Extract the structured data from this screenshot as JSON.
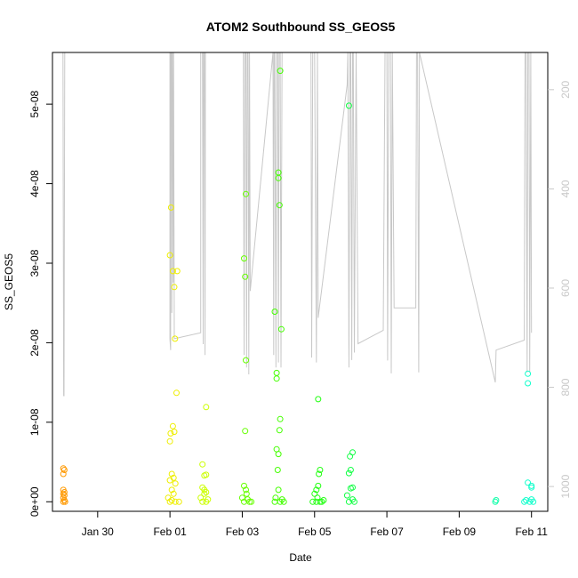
{
  "chart_data": {
    "type": "scatter",
    "title": "ATOM2 Southbound SS_GEOS5",
    "xlabel": "Date",
    "ylabel": "SS_GEOS5",
    "x_ticks": [
      "Jan 30",
      "Feb 01",
      "Feb 03",
      "Feb 05",
      "Feb 07",
      "Feb 09",
      "Feb 11"
    ],
    "x_tick_days": [
      1,
      3,
      5,
      7,
      9,
      11,
      13
    ],
    "xlim_days": [
      -0.25,
      13.45
    ],
    "y_ticks": [
      "0e+00",
      "1e-08",
      "2e-08",
      "3e-08",
      "4e-08",
      "5e-08"
    ],
    "y_tick_values": [
      0,
      1e-08,
      2e-08,
      3e-08,
      4e-08,
      5e-08
    ],
    "ylim": [
      -1.2e-09,
      5.65e-08
    ],
    "right_ticks": [
      "200",
      "400",
      "600",
      "800",
      "1000"
    ],
    "right_tick_values": [
      200,
      400,
      600,
      800,
      1000
    ],
    "right_lim": [
      1050,
      125
    ],
    "line_color": "#c8c8c8",
    "groups": [
      {
        "color": "#ff9900",
        "points": [
          [
            0.05,
            0
          ],
          [
            0.05,
            5e-10
          ],
          [
            0.05,
            1e-09
          ],
          [
            0.05,
            1.5e-09
          ],
          [
            0.05,
            3.5e-09
          ],
          [
            0.05,
            4.2e-09
          ],
          [
            0.08,
            4e-09
          ],
          [
            0.08,
            8e-10
          ],
          [
            0.08,
            1.2e-09
          ],
          [
            0.08,
            2e-10
          ],
          [
            0.1,
            0
          ]
        ]
      },
      {
        "color": "#eeee00",
        "points": [
          [
            3.0,
            3.1e-08
          ],
          [
            3.03,
            3.7e-08
          ],
          [
            3.08,
            2.9e-08
          ],
          [
            3.12,
            2.7e-08
          ],
          [
            3.14,
            2.05e-08
          ],
          [
            3.2,
            2.9e-08
          ],
          [
            3.18,
            1.37e-08
          ],
          [
            3.02,
            8.6e-09
          ],
          [
            3.0,
            7.6e-09
          ],
          [
            3.08,
            9.5e-09
          ],
          [
            3.12,
            8.8e-09
          ],
          [
            3.05,
            3.5e-09
          ],
          [
            3.1,
            3e-09
          ],
          [
            3.0,
            2.7e-09
          ],
          [
            3.15,
            2.3e-09
          ],
          [
            3.05,
            1.5e-09
          ],
          [
            3.1,
            1e-09
          ],
          [
            2.95,
            5e-10
          ],
          [
            3.05,
            2e-10
          ],
          [
            3.15,
            0
          ],
          [
            3.25,
            0
          ],
          [
            3.0,
            0
          ]
        ]
      },
      {
        "color": "#ccff00",
        "points": [
          [
            4.0,
            1.19e-08
          ],
          [
            3.9,
            4.7e-09
          ],
          [
            3.95,
            3.3e-09
          ],
          [
            4.0,
            3.4e-09
          ],
          [
            3.9,
            1.8e-09
          ],
          [
            3.95,
            1e-09
          ],
          [
            4.0,
            1.2e-09
          ],
          [
            3.85,
            5e-10
          ],
          [
            3.9,
            0
          ],
          [
            4.0,
            0
          ],
          [
            4.05,
            3e-10
          ],
          [
            3.95,
            1.5e-09
          ]
        ]
      },
      {
        "color": "#66ff00",
        "points": [
          [
            5.05,
            3.06e-08
          ],
          [
            5.1,
            3.87e-08
          ],
          [
            5.08,
            2.83e-08
          ],
          [
            5.1,
            1.78e-08
          ],
          [
            5.08,
            8.9e-09
          ],
          [
            5.05,
            2e-09
          ],
          [
            5.1,
            1.5e-09
          ],
          [
            5.0,
            5e-10
          ],
          [
            5.05,
            0
          ],
          [
            5.12,
            1e-09
          ],
          [
            5.15,
            3e-10
          ],
          [
            5.2,
            0
          ],
          [
            5.25,
            0
          ]
        ]
      },
      {
        "color": "#44ff00",
        "points": [
          [
            5.9,
            2.39e-08
          ],
          [
            5.95,
            1.62e-08
          ],
          [
            5.95,
            1.55e-08
          ],
          [
            6.0,
            4.14e-08
          ],
          [
            6.0,
            4.07e-08
          ],
          [
            6.03,
            3.73e-08
          ],
          [
            6.05,
            5.42e-08
          ],
          [
            6.08,
            2.17e-08
          ],
          [
            6.05,
            1.04e-08
          ],
          [
            6.03,
            9e-09
          ],
          [
            5.95,
            6.6e-09
          ],
          [
            6.0,
            6e-09
          ],
          [
            5.98,
            4e-09
          ],
          [
            6.0,
            1.5e-09
          ],
          [
            5.92,
            5e-10
          ],
          [
            6.05,
            0
          ],
          [
            6.1,
            3e-10
          ],
          [
            6.15,
            0
          ],
          [
            5.9,
            0
          ]
        ]
      },
      {
        "color": "#22ff11",
        "points": [
          [
            7.1,
            1.29e-08
          ],
          [
            7.12,
            3.5e-09
          ],
          [
            7.15,
            4e-09
          ],
          [
            7.1,
            2e-09
          ],
          [
            7.05,
            1.5e-09
          ],
          [
            7.0,
            1e-09
          ],
          [
            7.08,
            5e-10
          ],
          [
            7.15,
            0
          ],
          [
            7.2,
            0
          ],
          [
            6.95,
            0
          ],
          [
            7.05,
            0
          ],
          [
            7.25,
            2e-10
          ]
        ]
      },
      {
        "color": "#11ff44",
        "points": [
          [
            7.95,
            4.98e-08
          ],
          [
            8.05,
            6.2e-09
          ],
          [
            7.98,
            5.7e-09
          ],
          [
            8.0,
            4e-09
          ],
          [
            7.95,
            3.6e-09
          ],
          [
            8.05,
            1.8e-09
          ],
          [
            8.0,
            1.7e-09
          ],
          [
            7.9,
            8e-10
          ],
          [
            7.95,
            0
          ],
          [
            8.1,
            0
          ],
          [
            8.05,
            3e-10
          ]
        ]
      },
      {
        "color": "#11ffaa",
        "points": [
          [
            12.0,
            0
          ],
          [
            12.02,
            2e-10
          ]
        ]
      },
      {
        "color": "#11ffcc",
        "points": [
          [
            12.9,
            1.61e-08
          ],
          [
            12.9,
            1.49e-08
          ],
          [
            12.9,
            2.4e-09
          ],
          [
            13.0,
            1.8e-09
          ],
          [
            13.0,
            2e-09
          ],
          [
            12.95,
            0
          ],
          [
            13.0,
            3e-10
          ],
          [
            12.8,
            0
          ],
          [
            13.05,
            0
          ],
          [
            12.85,
            2e-10
          ]
        ]
      }
    ],
    "pressure_track": [
      [
        0.04,
        125
      ],
      [
        0.06,
        817
      ],
      [
        0.07,
        817
      ],
      [
        0.09,
        125
      ],
      [
        3.0,
        125
      ],
      [
        3.0,
        703
      ],
      [
        3.02,
        725
      ],
      [
        3.02,
        125
      ],
      [
        3.04,
        125
      ],
      [
        3.05,
        650
      ],
      [
        3.06,
        125
      ],
      [
        3.07,
        125
      ],
      [
        3.09,
        589
      ],
      [
        3.1,
        125
      ],
      [
        3.12,
        702
      ],
      [
        3.85,
        690
      ],
      [
        3.85,
        125
      ],
      [
        3.9,
        125
      ],
      [
        3.92,
        713
      ],
      [
        3.93,
        125
      ],
      [
        3.95,
        125
      ],
      [
        3.97,
        735
      ],
      [
        3.98,
        125
      ],
      [
        5.03,
        125
      ],
      [
        5.05,
        735
      ],
      [
        5.07,
        125
      ],
      [
        5.1,
        125
      ],
      [
        5.12,
        760
      ],
      [
        5.14,
        125
      ],
      [
        5.16,
        125
      ],
      [
        5.18,
        774
      ],
      [
        5.2,
        125
      ],
      [
        5.22,
        606
      ],
      [
        5.85,
        125
      ],
      [
        5.87,
        735
      ],
      [
        5.88,
        125
      ],
      [
        5.9,
        125
      ],
      [
        5.93,
        760
      ],
      [
        5.95,
        125
      ],
      [
        5.98,
        125
      ],
      [
        6.0,
        750
      ],
      [
        6.02,
        125
      ],
      [
        6.05,
        125
      ],
      [
        6.07,
        760
      ],
      [
        6.1,
        125
      ],
      [
        6.9,
        125
      ],
      [
        6.92,
        740
      ],
      [
        6.95,
        125
      ],
      [
        7.0,
        125
      ],
      [
        7.05,
        750
      ],
      [
        7.08,
        125
      ],
      [
        7.1,
        660
      ],
      [
        7.9,
        190
      ],
      [
        7.92,
        125
      ],
      [
        7.95,
        760
      ],
      [
        7.98,
        125
      ],
      [
        8.0,
        125
      ],
      [
        8.03,
        745
      ],
      [
        8.05,
        125
      ],
      [
        8.07,
        125
      ],
      [
        8.1,
        730
      ],
      [
        8.15,
        125
      ],
      [
        8.2,
        712
      ],
      [
        8.9,
        685
      ],
      [
        8.95,
        125
      ],
      [
        9.0,
        125
      ],
      [
        9.02,
        746
      ],
      [
        9.05,
        125
      ],
      [
        9.1,
        125
      ],
      [
        9.12,
        772
      ],
      [
        9.15,
        125
      ],
      [
        9.2,
        640
      ],
      [
        9.8,
        640
      ],
      [
        9.82,
        125
      ],
      [
        9.85,
        125
      ],
      [
        9.88,
        770
      ],
      [
        9.9,
        125
      ],
      [
        12.0,
        790
      ],
      [
        12.02,
        725
      ],
      [
        12.8,
        705
      ],
      [
        12.82,
        125
      ],
      [
        12.85,
        125
      ],
      [
        12.88,
        770
      ],
      [
        12.9,
        125
      ],
      [
        12.93,
        125
      ],
      [
        12.95,
        770
      ],
      [
        12.98,
        125
      ],
      [
        13.0,
        690
      ]
    ]
  }
}
